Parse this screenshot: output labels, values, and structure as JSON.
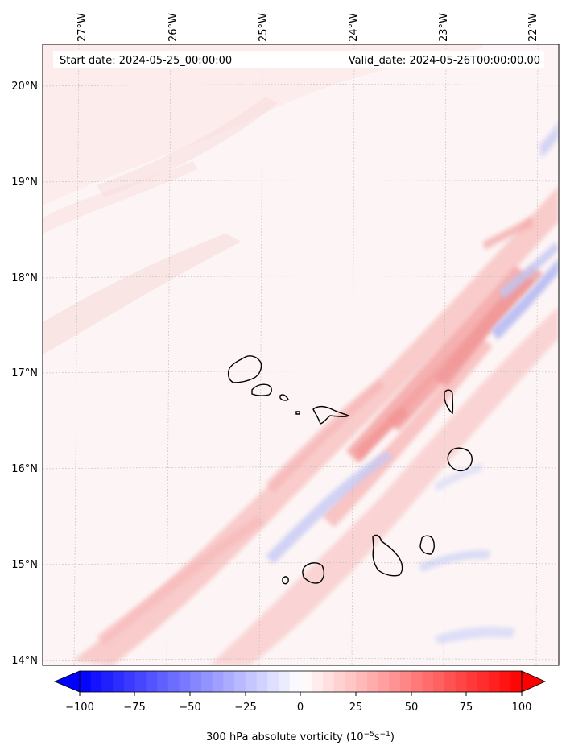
{
  "map": {
    "start_label": "Start date: 2024-05-25_00:00:00",
    "valid_label": "Valid_date: 2024-05-26T00:00:00.00",
    "lon_labels": [
      "27°W",
      "26°W",
      "25°W",
      "24°W",
      "23°W",
      "22°W"
    ],
    "lat_labels": [
      "20°N",
      "19°N",
      "18°N",
      "17°N",
      "16°N",
      "15°N",
      "14°N"
    ]
  },
  "colorbar": {
    "ticks": [
      "−100",
      "−75",
      "−50",
      "−25",
      "0",
      "25",
      "50",
      "75",
      "100"
    ],
    "title": "300 hPa absolute vorticity (10",
    "title_exp1": "−5",
    "title_mid": "s",
    "title_exp2": "−1",
    "title_end": ")",
    "min_color": "#0000ff",
    "max_color": "#ff0000"
  }
}
